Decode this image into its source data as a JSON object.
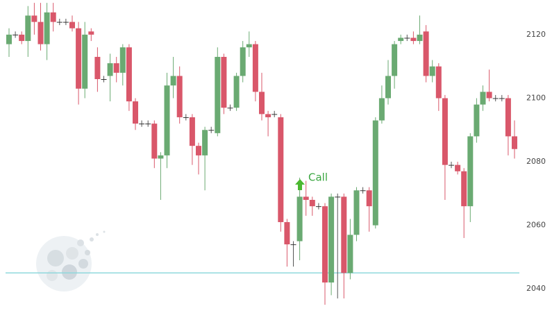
{
  "chart_data": {
    "type": "candlestick",
    "annotation": "Call",
    "up_color": "#6aaa72",
    "down_color": "#d9576a",
    "level_color": "#8fd8dd",
    "level": 2045,
    "ylim": [
      2032.4,
      2130.9
    ],
    "yticks": [
      2040,
      2060,
      2080,
      2100,
      2120
    ],
    "open": [
      2117,
      2120,
      2120,
      2118,
      2126,
      2124,
      2117,
      2127,
      2124,
      2124,
      2124,
      2122,
      2103,
      2121,
      2113,
      2106,
      2107,
      2111,
      2108,
      2116,
      2099,
      2092,
      2092,
      2092,
      2081,
      2082,
      2104,
      2107,
      2094,
      2094,
      2085,
      2082,
      2090,
      2089,
      2113,
      2097,
      2097,
      2107,
      2116,
      2117,
      2102,
      2095,
      2095,
      2094,
      2061,
      2054,
      2055,
      2069,
      2068,
      2066,
      2066,
      2042,
      2069,
      2069,
      2045,
      2057,
      2071,
      2071,
      2060,
      2093,
      2100,
      2107,
      2118,
      2119,
      2119,
      2118,
      2121,
      2107,
      2110,
      2100,
      2079,
      2079,
      2077,
      2066,
      2088,
      2098,
      2102,
      2100,
      2100,
      2100,
      2088
    ],
    "high": [
      2122,
      2121,
      2121,
      2129,
      2130,
      2130,
      2130,
      2130,
      2125,
      2125,
      2126,
      2124,
      2124,
      2122,
      2116,
      2107,
      2114,
      2113,
      2117,
      2117,
      2100,
      2093,
      2093,
      2093,
      2083,
      2108,
      2113,
      2110,
      2095,
      2095,
      2086,
      2091,
      2091,
      2116,
      2114,
      2098,
      2108,
      2118,
      2121,
      2118,
      2108,
      2096,
      2096,
      2095,
      2062,
      2055,
      2075,
      2074,
      2069,
      2067,
      2067,
      2070,
      2070,
      2070,
      2062,
      2072,
      2072,
      2072,
      2094,
      2104,
      2112,
      2118,
      2120,
      2120,
      2121,
      2126,
      2123,
      2112,
      2111,
      2101,
      2080,
      2080,
      2078,
      2089,
      2100,
      2104,
      2109,
      2101,
      2101,
      2101,
      2093
    ],
    "low": [
      2113,
      2119,
      2117,
      2113,
      2120,
      2115,
      2112,
      2121,
      2123,
      2123,
      2121,
      2098,
      2100,
      2118,
      2102,
      2105,
      2099,
      2105,
      2104,
      2096,
      2090,
      2091,
      2091,
      2078,
      2068,
      2078,
      2100,
      2092,
      2093,
      2079,
      2076,
      2071,
      2089,
      2088,
      2095,
      2096,
      2096,
      2105,
      2113,
      2099,
      2093,
      2088,
      2094,
      2058,
      2047,
      2047,
      2049,
      2063,
      2063,
      2065,
      2035,
      2038,
      2037,
      2037,
      2043,
      2055,
      2070,
      2058,
      2059,
      2092,
      2098,
      2103,
      2117,
      2118,
      2117,
      2117,
      2105,
      2105,
      2096,
      2068,
      2078,
      2076,
      2056,
      2061,
      2086,
      2096,
      2099,
      2099,
      2099,
      2082,
      2081
    ],
    "close": [
      2120,
      2120,
      2118,
      2126,
      2124,
      2117,
      2127,
      2124,
      2124,
      2124,
      2122,
      2103,
      2120,
      2120,
      2106,
      2106,
      2111,
      2108,
      2116,
      2099,
      2092,
      2092,
      2092,
      2081,
      2082,
      2104,
      2107,
      2094,
      2094,
      2085,
      2082,
      2090,
      2090,
      2113,
      2097,
      2097,
      2107,
      2116,
      2117,
      2102,
      2095,
      2094,
      2095,
      2061,
      2054,
      2054,
      2069,
      2068,
      2066,
      2066,
      2042,
      2069,
      2069,
      2045,
      2057,
      2071,
      2071,
      2066,
      2093,
      2100,
      2107,
      2117,
      2119,
      2119,
      2118,
      2120,
      2107,
      2110,
      2100,
      2079,
      2079,
      2077,
      2066,
      2088,
      2098,
      2102,
      2100,
      2100,
      2100,
      2088,
      2084
    ]
  }
}
